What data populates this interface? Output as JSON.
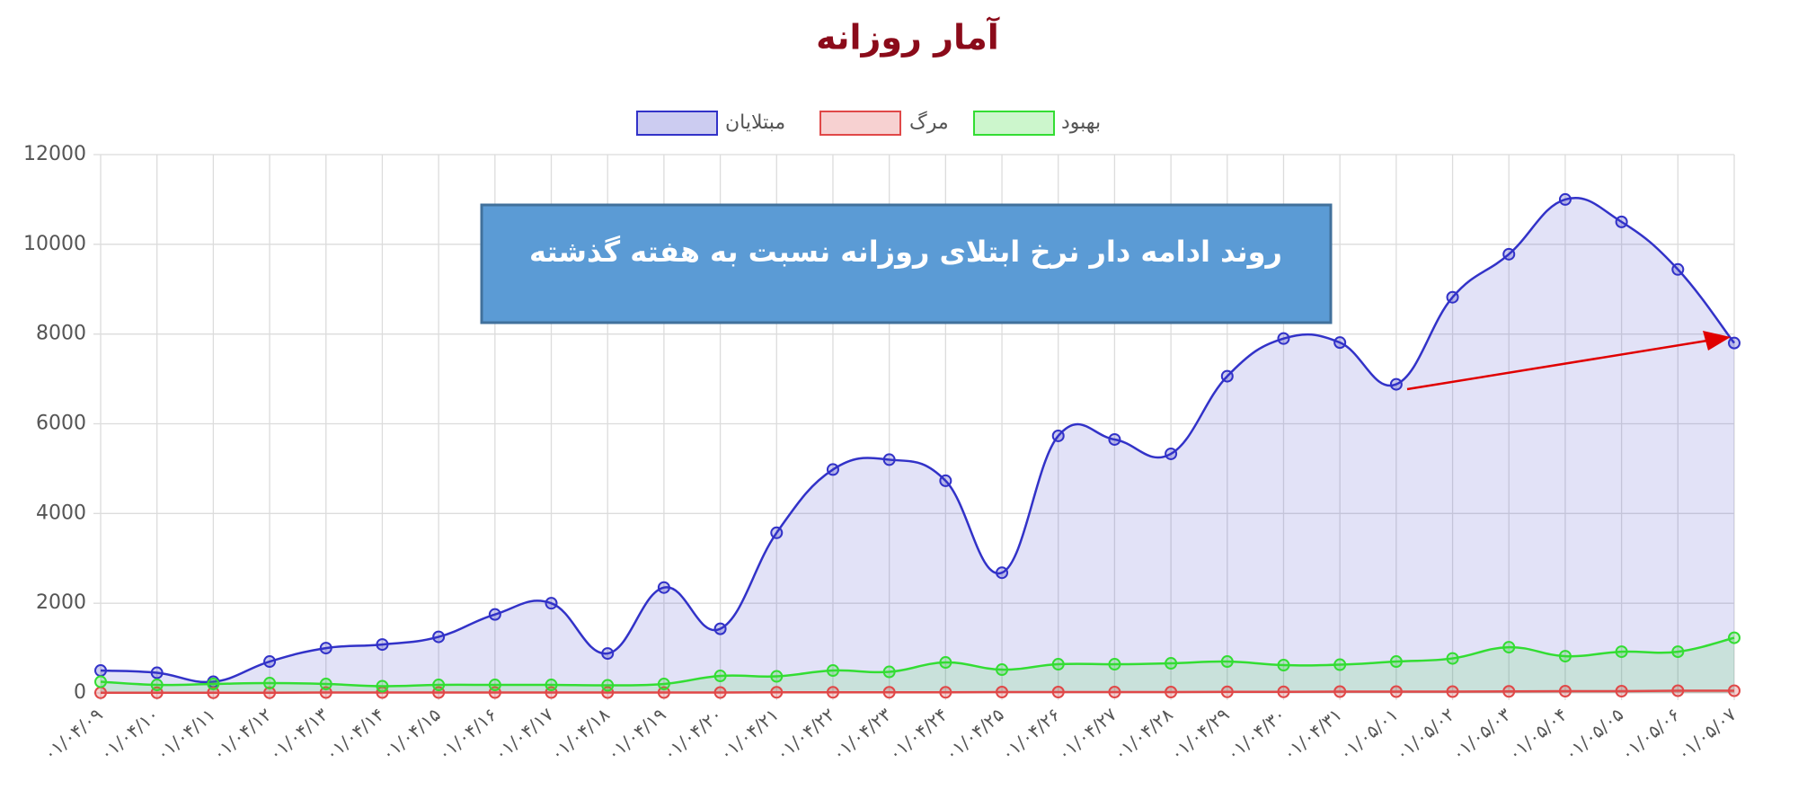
{
  "chart_data": {
    "type": "line",
    "title": "آمار روزانه",
    "annotation": "روند ادامه دار نرخ ابتلای روزانه نسبت به هفته گذشته",
    "categories": [
      "۰۱/۰۴/۰۹",
      "۰۱/۰۴/۱۰",
      "۰۱/۰۴/۱۱",
      "۰۱/۰۴/۱۲",
      "۰۱/۰۴/۱۳",
      "۰۱/۰۴/۱۴",
      "۰۱/۰۴/۱۵",
      "۰۱/۰۴/۱۶",
      "۰۱/۰۴/۱۷",
      "۰۱/۰۴/۱۸",
      "۰۱/۰۴/۱۹",
      "۰۱/۰۴/۲۰",
      "۰۱/۰۴/۲۱",
      "۰۱/۰۴/۲۲",
      "۰۱/۰۴/۲۳",
      "۰۱/۰۴/۲۴",
      "۰۱/۰۴/۲۵",
      "۰۱/۰۴/۲۶",
      "۰۱/۰۴/۲۷",
      "۰۱/۰۴/۲۸",
      "۰۱/۰۴/۲۹",
      "۰۱/۰۴/۳۰",
      "۰۱/۰۴/۳۱",
      "۰۱/۰۵/۰۱",
      "۰۱/۰۵/۰۲",
      "۰۱/۰۵/۰۳",
      "۰۱/۰۵/۰۴",
      "۰۱/۰۵/۰۵",
      "۰۱/۰۵/۰۶",
      "۰۱/۰۵/۰۷"
    ],
    "series": [
      {
        "name": "مبتلایان",
        "color": "#3232c8",
        "values": [
          500,
          450,
          250,
          700,
          1000,
          1080,
          1250,
          1750,
          2000,
          880,
          2350,
          1430,
          3570,
          4980,
          5200,
          4730,
          2680,
          5730,
          5650,
          5330,
          7060,
          7900,
          7810,
          6880,
          8820,
          9780,
          11000,
          10500,
          9440,
          7800
        ]
      },
      {
        "name": "مرگ",
        "color": "#e04848",
        "values": [
          5,
          5,
          5,
          5,
          10,
          10,
          10,
          10,
          10,
          10,
          10,
          10,
          15,
          15,
          15,
          15,
          20,
          20,
          20,
          20,
          25,
          25,
          30,
          30,
          30,
          35,
          40,
          40,
          50,
          50
        ]
      },
      {
        "name": "بهبود",
        "color": "#33dd33",
        "values": [
          250,
          180,
          200,
          220,
          200,
          150,
          180,
          180,
          180,
          170,
          200,
          380,
          370,
          500,
          470,
          680,
          520,
          640,
          640,
          660,
          700,
          620,
          630,
          700,
          770,
          1020,
          820,
          920,
          920,
          1230
        ]
      }
    ],
    "ylim": [
      0,
      12000
    ],
    "yticks": [
      0,
      2000,
      4000,
      6000,
      8000,
      10000,
      12000
    ],
    "grid": true,
    "legend": "top"
  }
}
